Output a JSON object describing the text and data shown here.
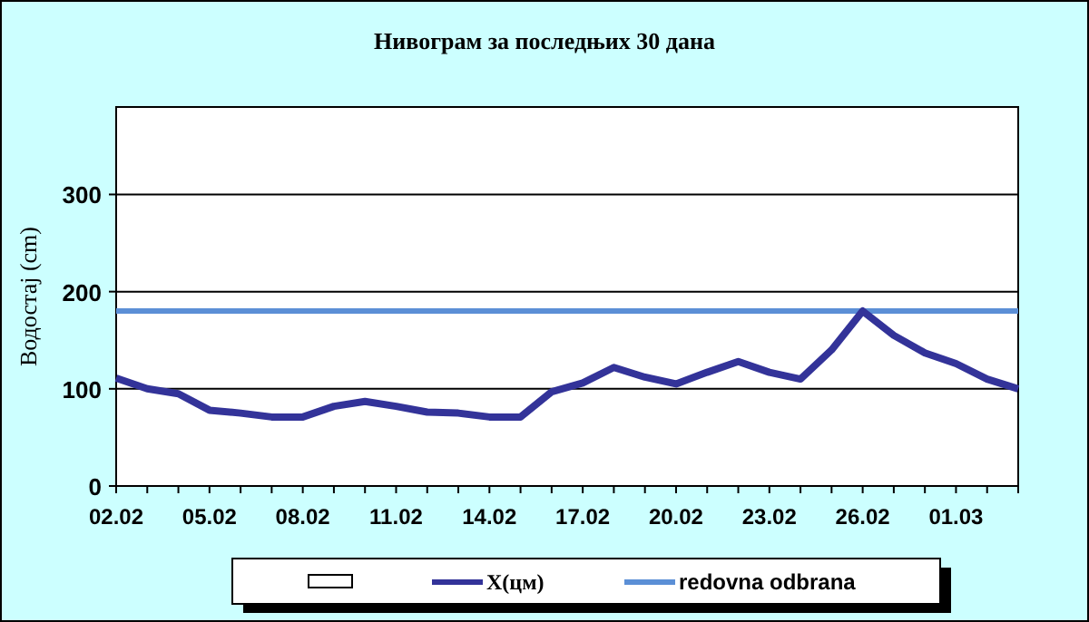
{
  "chart_data": {
    "type": "line",
    "title": "Нивограм за последњих 30 дана",
    "ylabel": "Водостај (cm)",
    "categories": [
      "02.02",
      null,
      null,
      "05.02",
      null,
      null,
      "08.02",
      null,
      null,
      "11.02",
      null,
      null,
      "14.02",
      null,
      null,
      "17.02",
      null,
      null,
      "20.02",
      null,
      null,
      "23.02",
      null,
      null,
      "26.02",
      null,
      null,
      "01.03",
      null,
      null
    ],
    "series": [
      {
        "name": "X(цм)",
        "color": "#333399",
        "values": [
          111,
          100,
          95,
          78,
          75,
          71,
          71,
          82,
          87,
          82,
          76,
          75,
          71,
          71,
          97,
          106,
          122,
          112,
          105,
          117,
          128,
          117,
          110,
          140,
          180,
          155,
          137,
          126,
          110,
          100
        ]
      }
    ],
    "ref_lines": [
      {
        "axis": "y",
        "value": 180,
        "label": "redovna odbrana",
        "color": "#5b8fd6"
      }
    ],
    "ylim": [
      0,
      390
    ],
    "yticks": [
      0,
      100,
      200,
      300
    ],
    "grid": "y",
    "legend": "bottom",
    "marker": "none",
    "line_style": "solid"
  }
}
